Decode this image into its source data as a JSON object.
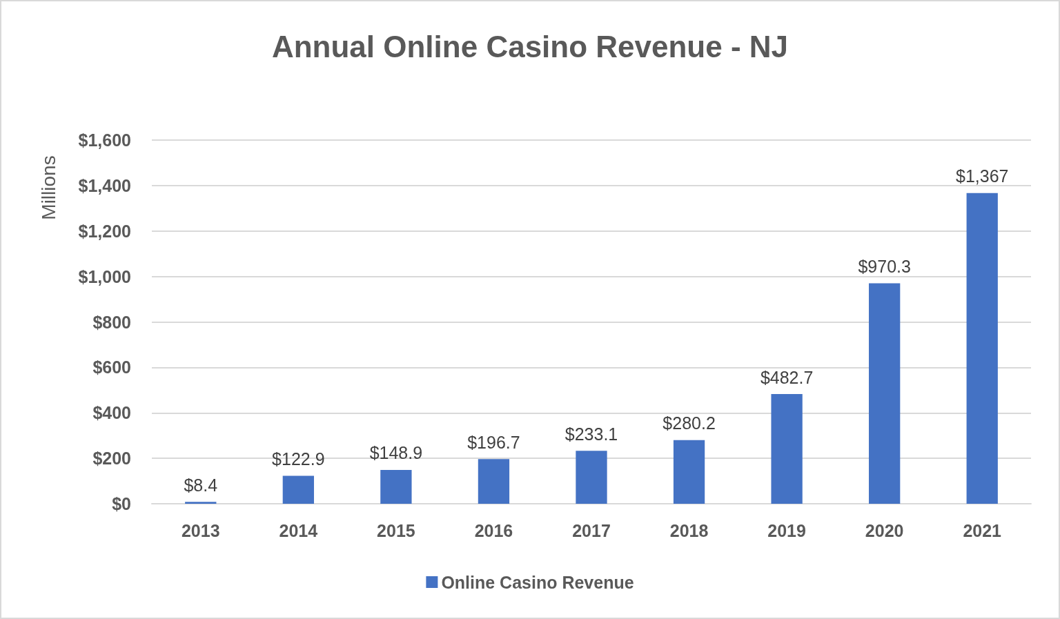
{
  "chart_data": {
    "type": "bar",
    "title": "Annual Online Casino Revenue - NJ",
    "ylabel": "Millions",
    "categories": [
      "2013",
      "2014",
      "2015",
      "2016",
      "2017",
      "2018",
      "2019",
      "2020",
      "2021"
    ],
    "series": [
      {
        "name": "Online Casino Revenue",
        "color": "#4472c4",
        "values": [
          8.4,
          122.9,
          148.9,
          196.7,
          233.1,
          280.2,
          482.7,
          970.3,
          1367
        ],
        "value_labels": [
          "$8.4",
          "$122.9",
          "$148.9",
          "$196.7",
          "$233.1",
          "$280.2",
          "$482.7",
          "$970.3",
          "$1,367"
        ]
      }
    ],
    "ylim": [
      0,
      1600
    ],
    "yticks": [
      {
        "value": 0,
        "label": "$0"
      },
      {
        "value": 200,
        "label": "$200"
      },
      {
        "value": 400,
        "label": "$400"
      },
      {
        "value": 600,
        "label": "$600"
      },
      {
        "value": 800,
        "label": "$800"
      },
      {
        "value": 1000,
        "label": "$1,000"
      },
      {
        "value": 1200,
        "label": "$1,200"
      },
      {
        "value": 1400,
        "label": "$1,400"
      },
      {
        "value": 1600,
        "label": "$1,600"
      }
    ],
    "grid": "y",
    "legend": "bottom"
  }
}
